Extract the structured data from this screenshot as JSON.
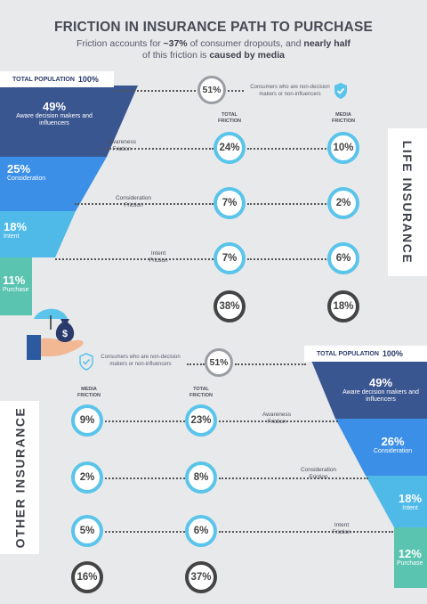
{
  "title": "FRICTION IN INSURANCE PATH TO PURCHASE",
  "subtitle": {
    "p1": "Friction accounts for ",
    "b1": "~37%",
    "p2": " of consumer dropouts, and ",
    "b2": "nearly half",
    "p3": "of this friction is ",
    "b3": "caused by media"
  },
  "life": {
    "tab": "LIFE INSURANCE",
    "pop_label": "TOTAL POPULATION",
    "pop_value": "100%",
    "non_decision_pct": "51%",
    "non_decision_note": "Consumers who are non-decision makers or non-influencers",
    "total_head": "TOTAL FRICTION",
    "media_head": "MEDIA FRICTION",
    "funnel": [
      {
        "pct": "49%",
        "label": "Aware decision makers and influencers"
      },
      {
        "pct": "25%",
        "label": "Consideration"
      },
      {
        "pct": "18%",
        "label": "Intent"
      },
      {
        "pct": "11%",
        "label": "Purchase"
      }
    ],
    "rows": [
      {
        "label": "Awareness Friction",
        "total": "24%",
        "media": "10%"
      },
      {
        "label": "Consideration Friction",
        "total": "7%",
        "media": "2%"
      },
      {
        "label": "Intent Friction",
        "total": "7%",
        "media": "6%"
      }
    ],
    "sum_total": "38%",
    "sum_media": "18%"
  },
  "other": {
    "tab": "OTHER INSURANCE",
    "pop_label": "TOTAL POPULATION",
    "pop_value": "100%",
    "non_decision_pct": "51%",
    "non_decision_note": "Consumers who are non-decision makers or non-influencers",
    "total_head": "TOTAL FRICTION",
    "media_head": "MEDIA FRICTION",
    "funnel": [
      {
        "pct": "49%",
        "label": "Aware decision makers and influencers"
      },
      {
        "pct": "26%",
        "label": "Consideration"
      },
      {
        "pct": "18%",
        "label": "Intent"
      },
      {
        "pct": "12%",
        "label": "Purchase"
      }
    ],
    "rows": [
      {
        "label": "Awareness Friction",
        "total": "23%",
        "media": "9%"
      },
      {
        "label": "Consideration Friction",
        "total": "8%",
        "media": "2%"
      },
      {
        "label": "Intent Friction",
        "total": "6%",
        "media": "5%"
      }
    ],
    "sum_total": "37%",
    "sum_media": "16%"
  },
  "colors": {
    "funnel_dark": "#3a5690",
    "funnel_mid": "#3b8fe6",
    "funnel_light": "#4fb9e8",
    "funnel_teal": "#5bc4b0",
    "ring_blue": "#5ac4ea",
    "ring_dark": "#444444"
  },
  "icons": [
    "shield-check-icon",
    "hand-umbrella-money-icon"
  ]
}
